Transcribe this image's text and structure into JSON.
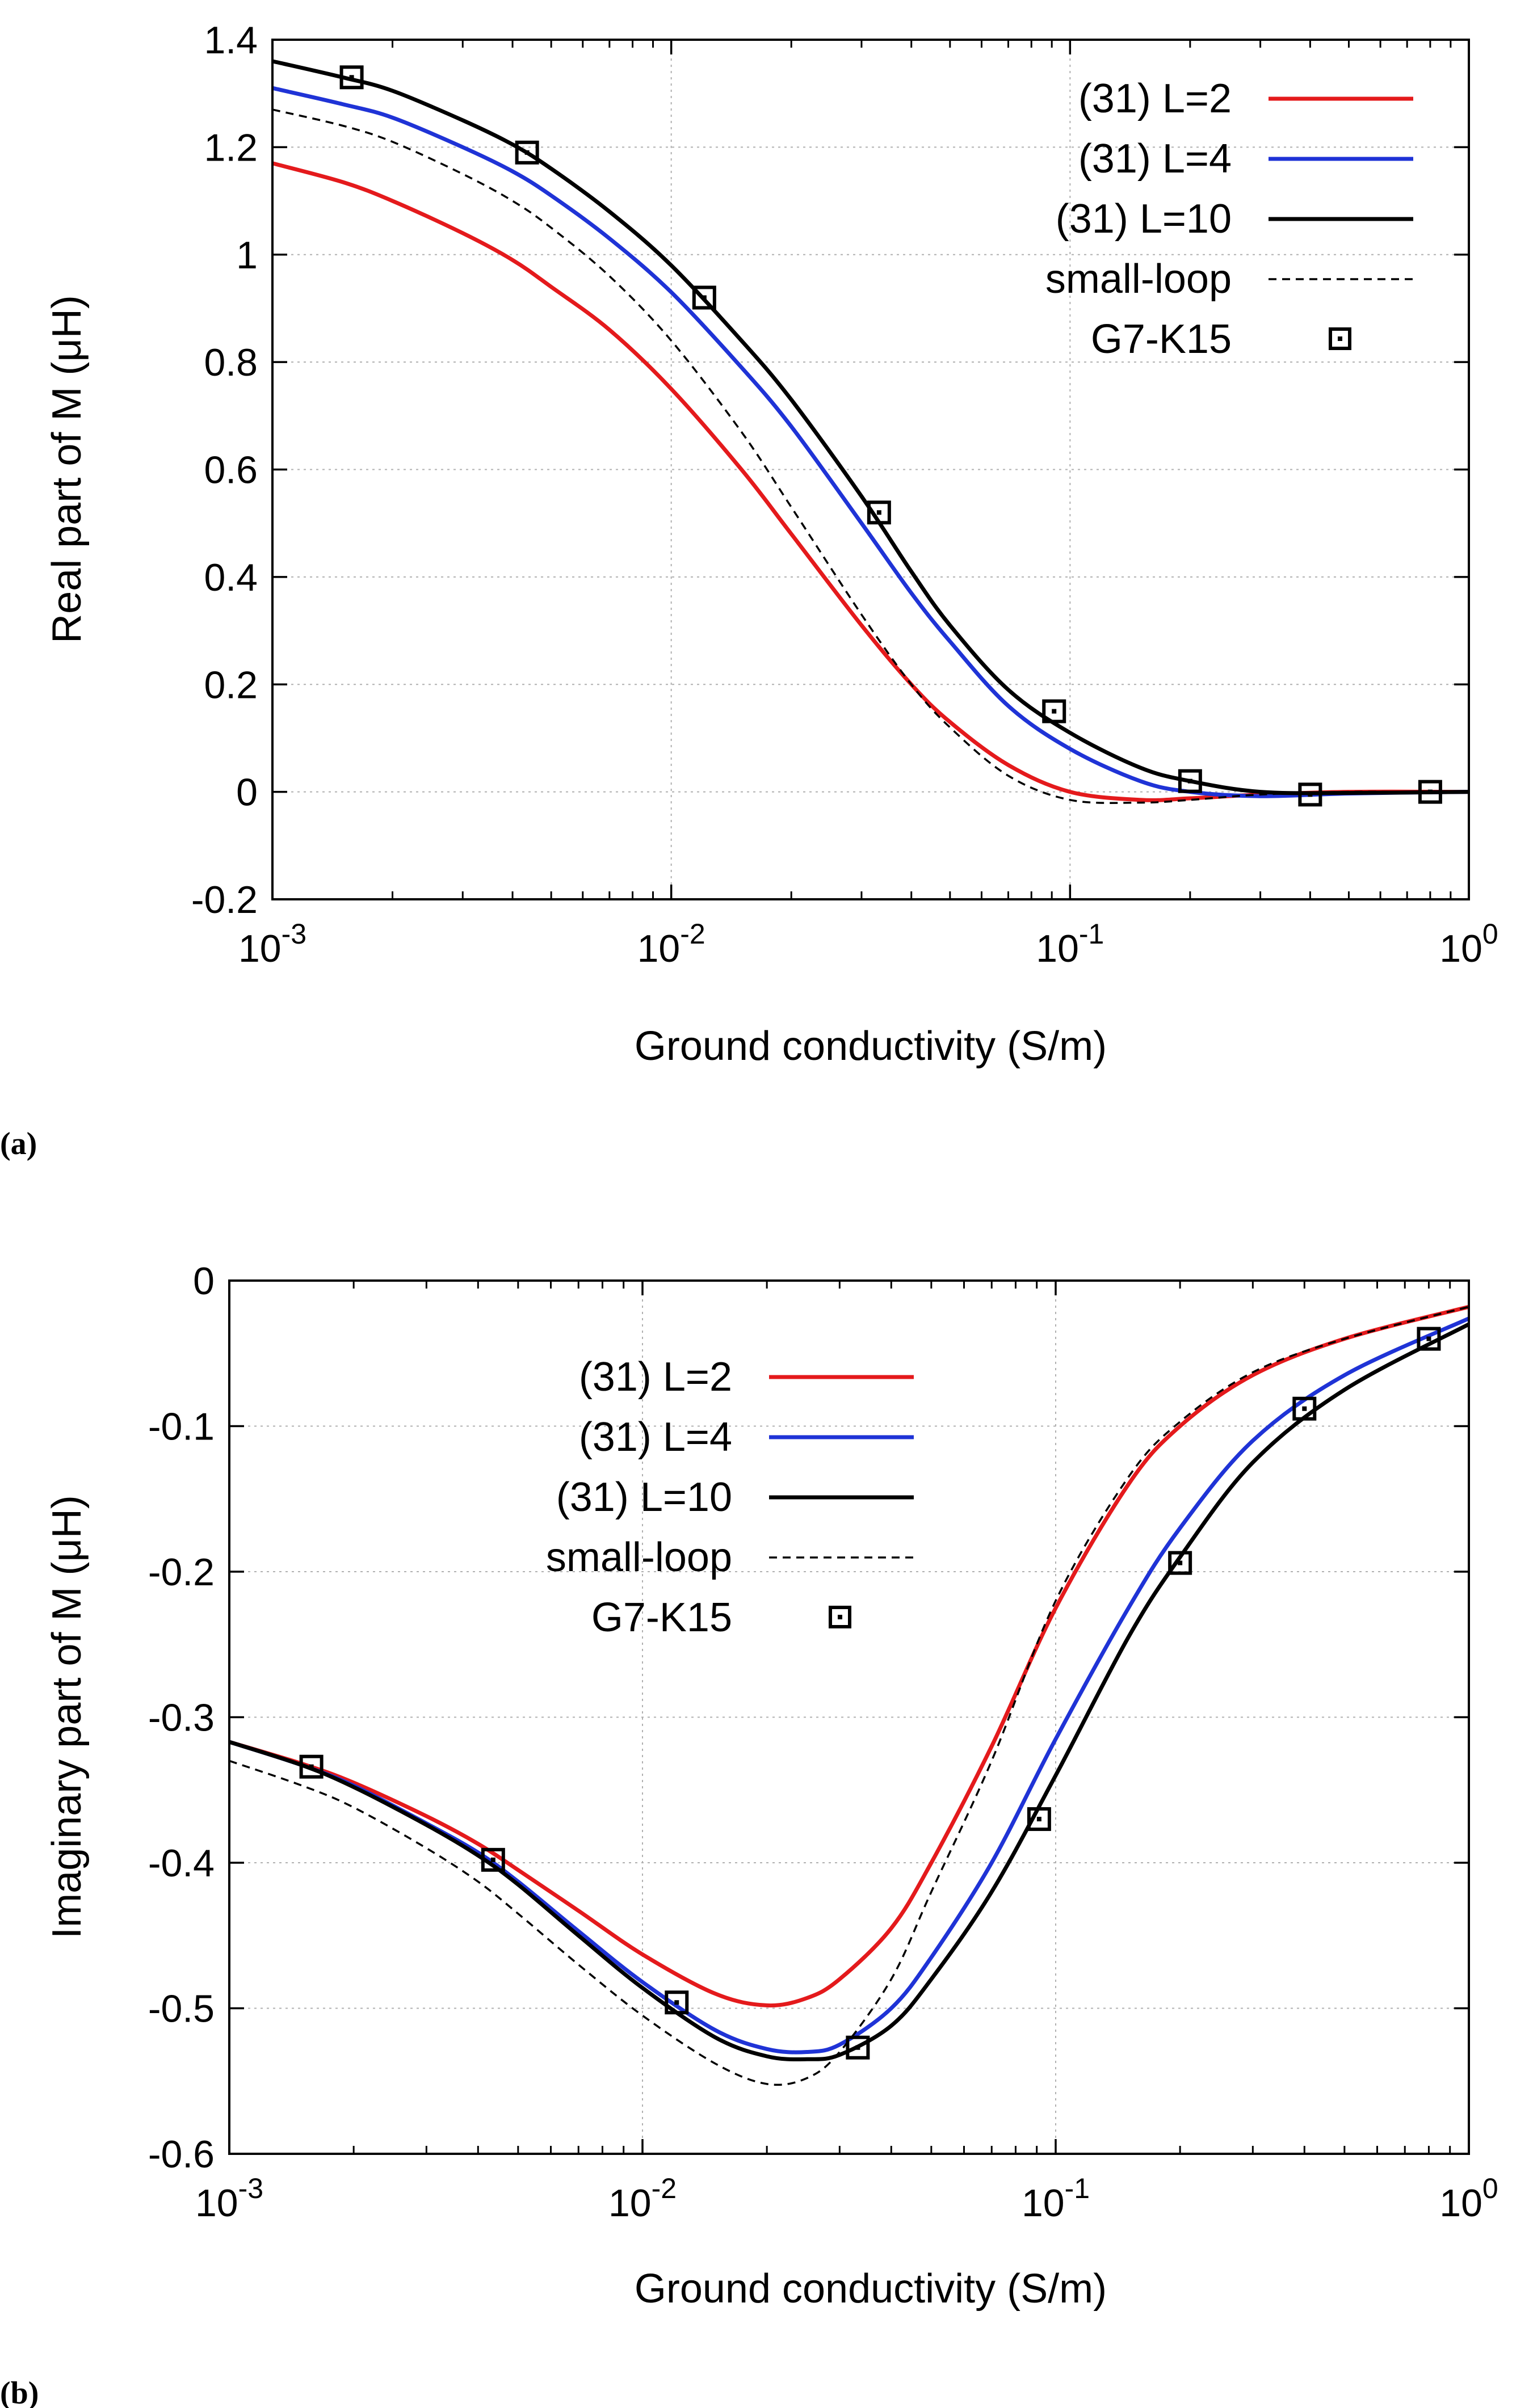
{
  "colors": {
    "l2": "#e41a1c",
    "l4": "#1f33d6",
    "l10": "#000000",
    "small_loop": "#000000",
    "marker": "#000000"
  },
  "chart_data": [
    {
      "panel": "(a)",
      "type": "line",
      "title": "",
      "xlabel": "Ground conductivity (S/m)",
      "ylabel": "Real part of M (μH)",
      "xscale": "log",
      "xlim": [
        0.001,
        1
      ],
      "ylim": [
        -0.2,
        1.4
      ],
      "xticks": [
        {
          "v": 0.001,
          "base": "10",
          "exp": "-3"
        },
        {
          "v": 0.01,
          "base": "10",
          "exp": "-2"
        },
        {
          "v": 0.1,
          "base": "10",
          "exp": "-1"
        },
        {
          "v": 1,
          "base": "10",
          "exp": "0"
        }
      ],
      "yticks": [
        {
          "v": -0.2,
          "label": "-0.2"
        },
        {
          "v": 0,
          "label": "0"
        },
        {
          "v": 0.2,
          "label": "0.2"
        },
        {
          "v": 0.4,
          "label": "0.4"
        },
        {
          "v": 0.6,
          "label": "0.6"
        },
        {
          "v": 0.8,
          "label": "0.8"
        },
        {
          "v": 1.0,
          "label": "1"
        },
        {
          "v": 1.2,
          "label": "1.2"
        },
        {
          "v": 1.4,
          "label": "1.4"
        }
      ],
      "grid": true,
      "legend_position": "top-right",
      "series": [
        {
          "name": "(31) L=2",
          "style": "line",
          "color_key": "l2",
          "x": [
            0.001,
            0.0015,
            0.002,
            0.003,
            0.004,
            0.005,
            0.007,
            0.01,
            0.015,
            0.02,
            0.03,
            0.04,
            0.05,
            0.07,
            0.1,
            0.15,
            0.2,
            0.3,
            0.5,
            1.0
          ],
          "y": [
            1.17,
            1.135,
            1.1,
            1.04,
            0.99,
            0.94,
            0.86,
            0.75,
            0.6,
            0.48,
            0.31,
            0.2,
            0.13,
            0.05,
            0.0,
            -0.015,
            -0.012,
            -0.005,
            0.0,
            0.0
          ]
        },
        {
          "name": "(31) L=4",
          "style": "line",
          "color_key": "l4",
          "x": [
            0.001,
            0.0015,
            0.002,
            0.003,
            0.004,
            0.005,
            0.007,
            0.01,
            0.015,
            0.02,
            0.03,
            0.04,
            0.05,
            0.07,
            0.1,
            0.15,
            0.2,
            0.3,
            0.5,
            1.0
          ],
          "y": [
            1.31,
            1.28,
            1.255,
            1.2,
            1.155,
            1.11,
            1.03,
            0.93,
            0.79,
            0.68,
            0.5,
            0.37,
            0.28,
            0.16,
            0.08,
            0.02,
            0.0,
            -0.008,
            -0.003,
            0.0
          ]
        },
        {
          "name": "(31) L=10",
          "style": "line",
          "color_key": "l10",
          "x": [
            0.001,
            0.0015,
            0.002,
            0.003,
            0.004,
            0.005,
            0.007,
            0.01,
            0.015,
            0.02,
            0.03,
            0.04,
            0.05,
            0.07,
            0.1,
            0.15,
            0.2,
            0.3,
            0.5,
            1.0
          ],
          "y": [
            1.36,
            1.33,
            1.305,
            1.25,
            1.205,
            1.16,
            1.08,
            0.98,
            0.84,
            0.73,
            0.55,
            0.41,
            0.31,
            0.19,
            0.11,
            0.045,
            0.02,
            0.0,
            -0.002,
            0.0
          ]
        },
        {
          "name": "small-loop",
          "style": "dashed",
          "color_key": "small_loop",
          "x": [
            0.001,
            0.0015,
            0.002,
            0.003,
            0.004,
            0.005,
            0.007,
            0.01,
            0.015,
            0.02,
            0.03,
            0.04,
            0.05,
            0.07,
            0.1,
            0.15,
            0.2,
            0.3,
            0.5,
            1.0
          ],
          "y": [
            1.27,
            1.24,
            1.21,
            1.15,
            1.1,
            1.05,
            0.96,
            0.84,
            0.67,
            0.53,
            0.33,
            0.2,
            0.12,
            0.03,
            -0.015,
            -0.02,
            -0.015,
            -0.005,
            0.0,
            0.0
          ]
        },
        {
          "name": "G7-K15",
          "style": "markers",
          "color_key": "marker",
          "x": [
            0.00158,
            0.00435,
            0.0121,
            0.0332,
            0.0912,
            0.2,
            0.4,
            0.8
          ],
          "y": [
            1.33,
            1.19,
            0.92,
            0.52,
            0.15,
            0.02,
            -0.005,
            0.0
          ]
        }
      ]
    },
    {
      "panel": "(b)",
      "type": "line",
      "title": "",
      "xlabel": "Ground conductivity (S/m)",
      "ylabel": "Imaginary part of M (μH)",
      "xscale": "log",
      "xlim": [
        0.001,
        1
      ],
      "ylim": [
        -0.6,
        0
      ],
      "xticks": [
        {
          "v": 0.001,
          "base": "10",
          "exp": "-3"
        },
        {
          "v": 0.01,
          "base": "10",
          "exp": "-2"
        },
        {
          "v": 0.1,
          "base": "10",
          "exp": "-1"
        },
        {
          "v": 1,
          "base": "10",
          "exp": "0"
        }
      ],
      "yticks": [
        {
          "v": -0.6,
          "label": "-0.6"
        },
        {
          "v": -0.5,
          "label": "-0.5"
        },
        {
          "v": -0.4,
          "label": "-0.4"
        },
        {
          "v": -0.3,
          "label": "-0.3"
        },
        {
          "v": -0.2,
          "label": "-0.2"
        },
        {
          "v": -0.1,
          "label": "-0.1"
        },
        {
          "v": 0,
          "label": "0"
        }
      ],
      "grid": true,
      "legend_position": "middle-left",
      "series": [
        {
          "name": "(31) L=2",
          "style": "line",
          "color_key": "l2",
          "x": [
            0.001,
            0.0015,
            0.002,
            0.003,
            0.004,
            0.005,
            0.007,
            0.01,
            0.015,
            0.02,
            0.025,
            0.03,
            0.04,
            0.05,
            0.07,
            0.1,
            0.15,
            0.2,
            0.3,
            0.5,
            1.0
          ],
          "y": [
            -0.317,
            -0.332,
            -0.345,
            -0.368,
            -0.387,
            -0.405,
            -0.433,
            -0.463,
            -0.49,
            -0.498,
            -0.493,
            -0.48,
            -0.445,
            -0.4,
            -0.32,
            -0.225,
            -0.14,
            -0.1,
            -0.065,
            -0.04,
            -0.018
          ]
        },
        {
          "name": "(31) L=4",
          "style": "line",
          "color_key": "l4",
          "x": [
            0.001,
            0.0015,
            0.002,
            0.003,
            0.004,
            0.005,
            0.007,
            0.01,
            0.015,
            0.02,
            0.025,
            0.03,
            0.04,
            0.05,
            0.07,
            0.1,
            0.15,
            0.2,
            0.3,
            0.5,
            1.0
          ],
          "y": [
            -0.317,
            -0.333,
            -0.347,
            -0.373,
            -0.393,
            -0.413,
            -0.447,
            -0.482,
            -0.515,
            -0.528,
            -0.53,
            -0.525,
            -0.5,
            -0.465,
            -0.4,
            -0.315,
            -0.225,
            -0.17,
            -0.11,
            -0.065,
            -0.026
          ]
        },
        {
          "name": "(31) L=10",
          "style": "line",
          "color_key": "l10",
          "x": [
            0.001,
            0.0015,
            0.002,
            0.003,
            0.004,
            0.005,
            0.007,
            0.01,
            0.015,
            0.02,
            0.025,
            0.03,
            0.04,
            0.05,
            0.07,
            0.1,
            0.15,
            0.2,
            0.3,
            0.5,
            1.0
          ],
          "y": [
            -0.317,
            -0.333,
            -0.348,
            -0.374,
            -0.395,
            -0.415,
            -0.45,
            -0.486,
            -0.52,
            -0.533,
            -0.535,
            -0.532,
            -0.512,
            -0.48,
            -0.42,
            -0.34,
            -0.245,
            -0.19,
            -0.125,
            -0.075,
            -0.03
          ]
        },
        {
          "name": "small-loop",
          "style": "dashed",
          "color_key": "small_loop",
          "x": [
            0.001,
            0.0015,
            0.002,
            0.003,
            0.004,
            0.005,
            0.007,
            0.01,
            0.015,
            0.02,
            0.025,
            0.03,
            0.04,
            0.05,
            0.07,
            0.1,
            0.15,
            0.2,
            0.3,
            0.5,
            1.0
          ],
          "y": [
            -0.33,
            -0.347,
            -0.362,
            -0.39,
            -0.413,
            -0.435,
            -0.47,
            -0.505,
            -0.538,
            -0.552,
            -0.548,
            -0.53,
            -0.48,
            -0.42,
            -0.33,
            -0.22,
            -0.135,
            -0.097,
            -0.063,
            -0.04,
            -0.018
          ]
        },
        {
          "name": "G7-K15",
          "style": "markers",
          "color_key": "marker",
          "x": [
            0.00158,
            0.00435,
            0.0121,
            0.0332,
            0.0912,
            0.2,
            0.4,
            0.8
          ],
          "y": [
            -0.334,
            -0.398,
            -0.496,
            -0.527,
            -0.37,
            -0.194,
            -0.088,
            -0.04
          ]
        }
      ]
    }
  ]
}
